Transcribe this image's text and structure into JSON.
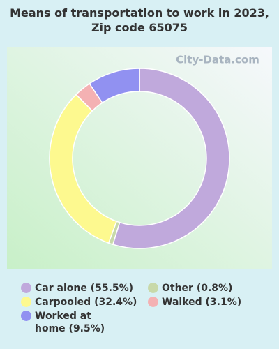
{
  "chart_data": {
    "type": "donut",
    "title": "Means of transportation to work in 2023, Zip code 65075",
    "watermark": "City-Data.com",
    "categories": [
      "Car alone (55.5%)",
      "Other (0.8%)",
      "Carpooled (32.4%)",
      "Walked (3.1%)",
      "Worked at home (9.5%)"
    ],
    "values": [
      55.5,
      0.8,
      32.4,
      3.1,
      9.5
    ],
    "colors": [
      "#c0a9dc",
      "#c8d9a9",
      "#fdf98f",
      "#f4b1b3",
      "#9191f1"
    ]
  }
}
